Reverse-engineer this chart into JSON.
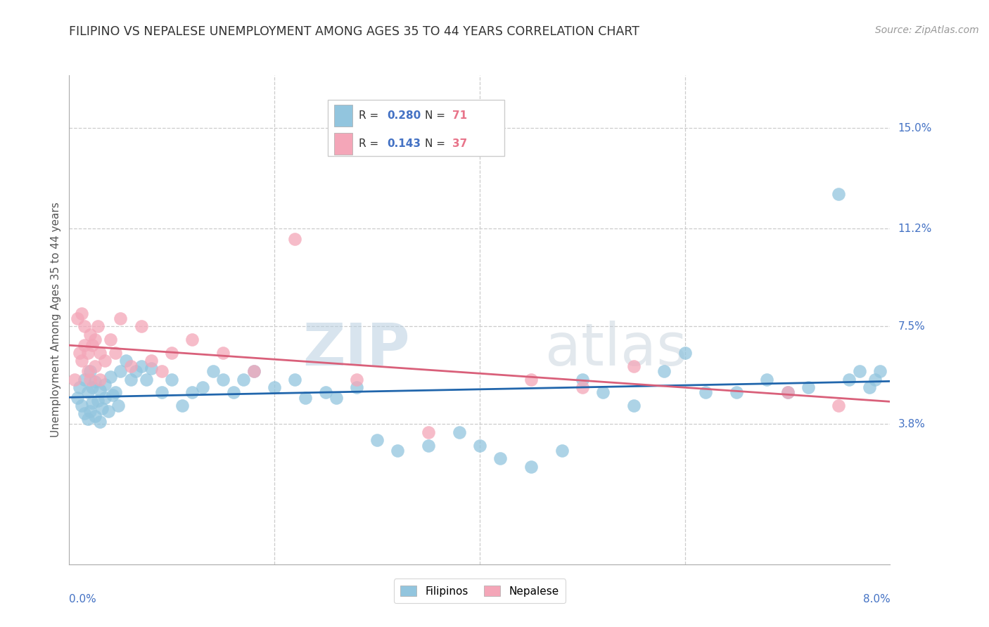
{
  "title": "FILIPINO VS NEPALESE UNEMPLOYMENT AMONG AGES 35 TO 44 YEARS CORRELATION CHART",
  "source": "Source: ZipAtlas.com",
  "ylabel": "Unemployment Among Ages 35 to 44 years",
  "xlim": [
    0.0,
    8.0
  ],
  "ylim": [
    -1.5,
    17.0
  ],
  "yticks": [
    3.8,
    7.5,
    11.2,
    15.0
  ],
  "ytick_labels": [
    "3.8%",
    "7.5%",
    "11.2%",
    "15.0%"
  ],
  "filipino_color": "#92C5DE",
  "nepalese_color": "#F4A6B8",
  "filipino_line_color": "#2166AC",
  "nepalese_line_color": "#D9607A",
  "R_filipino": "0.280",
  "N_filipino": "71",
  "R_nepalese": "0.143",
  "N_nepalese": "37",
  "legend_label_1": "Filipinos",
  "legend_label_2": "Nepalese",
  "watermark_zip": "ZIP",
  "watermark_atlas": "atlas",
  "background_color": "#ffffff",
  "filipino_x": [
    0.08,
    0.1,
    0.12,
    0.15,
    0.15,
    0.18,
    0.18,
    0.2,
    0.2,
    0.22,
    0.22,
    0.25,
    0.25,
    0.28,
    0.3,
    0.3,
    0.32,
    0.35,
    0.35,
    0.38,
    0.4,
    0.42,
    0.45,
    0.48,
    0.5,
    0.55,
    0.6,
    0.65,
    0.7,
    0.75,
    0.8,
    0.9,
    1.0,
    1.1,
    1.2,
    1.3,
    1.4,
    1.5,
    1.6,
    1.7,
    1.8,
    2.0,
    2.2,
    2.3,
    2.5,
    2.6,
    2.8,
    3.0,
    3.2,
    3.5,
    3.8,
    4.0,
    4.2,
    4.5,
    4.8,
    5.0,
    5.2,
    5.5,
    5.8,
    6.0,
    6.2,
    6.5,
    6.8,
    7.0,
    7.2,
    7.5,
    7.6,
    7.7,
    7.8,
    7.85,
    7.9
  ],
  "filipino_y": [
    4.8,
    5.2,
    4.5,
    5.5,
    4.2,
    4.0,
    5.0,
    4.3,
    5.8,
    4.6,
    5.2,
    4.1,
    5.4,
    4.7,
    3.9,
    5.1,
    4.4,
    4.8,
    5.3,
    4.3,
    5.6,
    4.9,
    5.0,
    4.5,
    5.8,
    6.2,
    5.5,
    5.8,
    6.0,
    5.5,
    5.9,
    5.0,
    5.5,
    4.5,
    5.0,
    5.2,
    5.8,
    5.5,
    5.0,
    5.5,
    5.8,
    5.2,
    5.5,
    4.8,
    5.0,
    4.8,
    5.2,
    3.2,
    2.8,
    3.0,
    3.5,
    3.0,
    2.5,
    2.2,
    2.8,
    5.5,
    5.0,
    4.5,
    5.8,
    6.5,
    5.0,
    5.0,
    5.5,
    5.0,
    5.2,
    12.5,
    5.5,
    5.8,
    5.2,
    5.5,
    5.8
  ],
  "nepalese_x": [
    0.05,
    0.08,
    0.1,
    0.12,
    0.12,
    0.15,
    0.15,
    0.18,
    0.18,
    0.2,
    0.2,
    0.22,
    0.25,
    0.25,
    0.28,
    0.3,
    0.3,
    0.35,
    0.4,
    0.45,
    0.5,
    0.6,
    0.7,
    0.8,
    0.9,
    1.0,
    1.2,
    1.5,
    1.8,
    2.2,
    2.8,
    3.5,
    4.5,
    5.0,
    5.5,
    7.0,
    7.5
  ],
  "nepalese_y": [
    5.5,
    7.8,
    6.5,
    8.0,
    6.2,
    7.5,
    6.8,
    5.8,
    6.5,
    7.2,
    5.5,
    6.8,
    7.0,
    6.0,
    7.5,
    5.5,
    6.5,
    6.2,
    7.0,
    6.5,
    7.8,
    6.0,
    7.5,
    6.2,
    5.8,
    6.5,
    7.0,
    6.5,
    5.8,
    10.8,
    5.5,
    3.5,
    5.5,
    5.2,
    6.0,
    5.0,
    4.5
  ]
}
